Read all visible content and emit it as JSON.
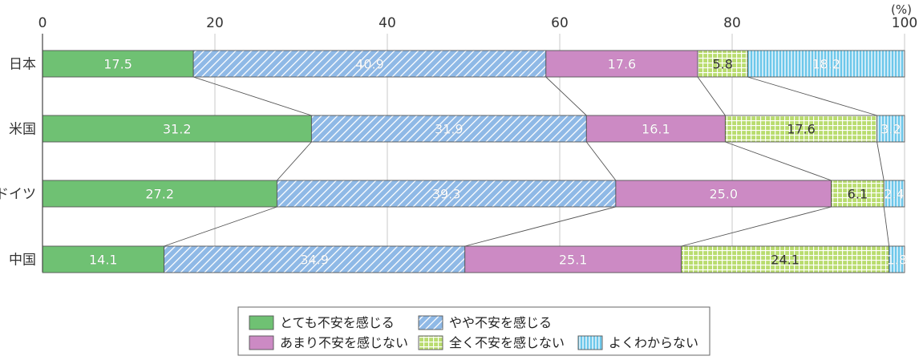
{
  "chart_data": {
    "type": "bar",
    "orientation": "horizontal",
    "stacked": true,
    "unit": "(%)",
    "xlim": [
      0,
      100
    ],
    "xticks": [
      0,
      20,
      40,
      60,
      80,
      100
    ],
    "grid": true,
    "legend_position": "bottom",
    "categories": [
      "日本",
      "米国",
      "ドイツ",
      "中国"
    ],
    "series": [
      {
        "name": "とても不安を感じる",
        "color": "#6fc173",
        "pattern": "solid",
        "values": [
          17.5,
          31.2,
          27.2,
          14.1
        ]
      },
      {
        "name": "やや不安を感じる",
        "color": "#6fa5dd",
        "pattern": "diagonal",
        "values": [
          40.9,
          31.9,
          39.3,
          34.9
        ]
      },
      {
        "name": "あまり不安を感じない",
        "color": "#cc8ac4",
        "pattern": "solid",
        "values": [
          17.6,
          16.1,
          25.0,
          25.1
        ]
      },
      {
        "name": "全く不安を感じない",
        "color": "#b9dc6f",
        "pattern": "grid",
        "values": [
          5.8,
          17.6,
          6.1,
          24.1
        ]
      },
      {
        "name": "よくわからない",
        "color": "#76cbea",
        "pattern": "vertical",
        "values": [
          18.2,
          3.2,
          2.4,
          1.8
        ]
      }
    ],
    "data_labels": [
      [
        "17.5",
        "40.9",
        "17.6",
        "5.8",
        "18.2"
      ],
      [
        "31.2",
        "31.9",
        "16.1",
        "17.6",
        "3.2"
      ],
      [
        "27.2",
        "39.3",
        "25.0",
        "6.1",
        "2.4"
      ],
      [
        "14.1",
        "34.9",
        "25.1",
        "24.1",
        "1.8"
      ]
    ]
  }
}
